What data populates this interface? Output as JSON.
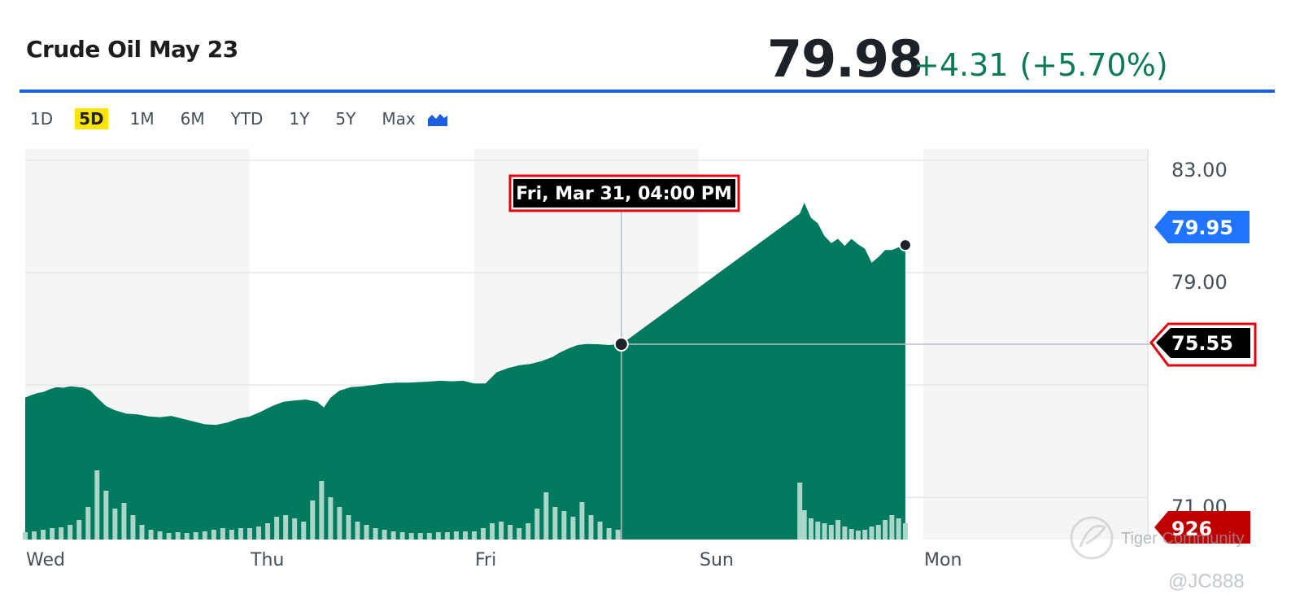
{
  "header": {
    "title": "Crude Oil May 23",
    "price": "79.98",
    "change": "+4.31",
    "change_percent": "(+5.70%)"
  },
  "range_tabs": [
    "1D",
    "5D",
    "1M",
    "6M",
    "YTD",
    "1Y",
    "5Y",
    "Max"
  ],
  "active_range": "5D",
  "chart_type_icon": "mountain-chart-icon",
  "colors": {
    "area": "#007a5e",
    "volume": "#a9d6c8",
    "accent_blue": "#1a5fe0",
    "current_price_badge": "#2074ff",
    "crosshair_badge": "#000000",
    "volume_badge": "#c00000",
    "highlight_box": "#e0000f",
    "change_green": "#0b7a55"
  },
  "tooltip": {
    "datetime": "Fri, Mar 31, 04:00 PM"
  },
  "badges": {
    "current_price": "79.95",
    "crosshair_price": "75.55",
    "volume": "926"
  },
  "watermark": {
    "brand": "Tiger Community",
    "handle": "@JC888"
  },
  "chart_data": {
    "type": "area",
    "title": "Crude Oil May 23",
    "x_labels": [
      "Wed",
      "Thu",
      "Fri",
      "Sun",
      "Mon"
    ],
    "y_ticks": [
      "83.00",
      "79.00",
      "71.00"
    ],
    "ylim": [
      69.5,
      83.4
    ],
    "grid": true,
    "series": [
      {
        "values": [
          [
            0.0,
            74.55
          ],
          [
            0.02,
            74.62
          ],
          [
            0.05,
            74.7
          ],
          [
            0.08,
            74.75
          ],
          [
            0.11,
            74.85
          ],
          [
            0.14,
            74.92
          ],
          [
            0.17,
            74.9
          ],
          [
            0.2,
            74.95
          ],
          [
            0.23,
            74.93
          ],
          [
            0.26,
            74.9
          ],
          [
            0.29,
            74.8
          ],
          [
            0.32,
            74.55
          ],
          [
            0.36,
            74.25
          ],
          [
            0.4,
            74.1
          ],
          [
            0.45,
            73.98
          ],
          [
            0.5,
            73.95
          ],
          [
            0.55,
            73.88
          ],
          [
            0.6,
            73.85
          ],
          [
            0.65,
            73.9
          ],
          [
            0.7,
            73.8
          ],
          [
            0.75,
            73.7
          ],
          [
            0.8,
            73.6
          ],
          [
            0.85,
            73.58
          ],
          [
            0.9,
            73.66
          ],
          [
            0.95,
            73.8
          ],
          [
            1.0,
            73.88
          ],
          [
            1.05,
            74.05
          ],
          [
            1.1,
            74.25
          ],
          [
            1.15,
            74.4
          ],
          [
            1.2,
            74.45
          ],
          [
            1.25,
            74.48
          ],
          [
            1.3,
            74.4
          ],
          [
            1.33,
            74.2
          ],
          [
            1.36,
            74.55
          ],
          [
            1.4,
            74.8
          ],
          [
            1.45,
            74.92
          ],
          [
            1.5,
            74.95
          ],
          [
            1.55,
            75.0
          ],
          [
            1.6,
            75.05
          ],
          [
            1.65,
            75.08
          ],
          [
            1.7,
            75.08
          ],
          [
            1.75,
            75.1
          ],
          [
            1.8,
            75.12
          ],
          [
            1.85,
            75.15
          ],
          [
            1.9,
            75.13
          ],
          [
            1.95,
            75.15
          ],
          [
            2.0,
            75.05
          ],
          [
            2.05,
            75.05
          ],
          [
            2.1,
            75.45
          ],
          [
            2.15,
            75.6
          ],
          [
            2.2,
            75.7
          ],
          [
            2.25,
            75.75
          ],
          [
            2.3,
            75.85
          ],
          [
            2.35,
            76.0
          ],
          [
            2.38,
            76.15
          ],
          [
            2.42,
            76.3
          ],
          [
            2.46,
            76.42
          ],
          [
            2.5,
            76.46
          ],
          [
            2.55,
            76.45
          ],
          [
            2.6,
            76.42
          ],
          [
            2.63,
            76.44
          ],
          [
            2.655,
            76.45
          ],
          [
            3.45,
            81.1
          ],
          [
            3.47,
            81.48
          ],
          [
            3.5,
            80.95
          ],
          [
            3.53,
            80.75
          ],
          [
            3.56,
            80.3
          ],
          [
            3.59,
            80.05
          ],
          [
            3.62,
            80.2
          ],
          [
            3.65,
            79.95
          ],
          [
            3.68,
            80.2
          ],
          [
            3.71,
            80.0
          ],
          [
            3.74,
            79.85
          ],
          [
            3.77,
            79.35
          ],
          [
            3.8,
            79.55
          ],
          [
            3.83,
            79.8
          ],
          [
            3.86,
            79.8
          ],
          [
            3.89,
            79.9
          ],
          [
            3.92,
            79.98
          ]
        ]
      }
    ],
    "volume_series": [
      [
        0.0,
        9
      ],
      [
        0.04,
        10
      ],
      [
        0.08,
        12
      ],
      [
        0.12,
        14
      ],
      [
        0.16,
        15
      ],
      [
        0.2,
        18
      ],
      [
        0.24,
        24
      ],
      [
        0.28,
        40
      ],
      [
        0.32,
        85
      ],
      [
        0.36,
        60
      ],
      [
        0.4,
        38
      ],
      [
        0.44,
        45
      ],
      [
        0.48,
        30
      ],
      [
        0.52,
        18
      ],
      [
        0.56,
        12
      ],
      [
        0.6,
        10
      ],
      [
        0.64,
        8
      ],
      [
        0.68,
        9
      ],
      [
        0.72,
        8
      ],
      [
        0.76,
        9
      ],
      [
        0.8,
        10
      ],
      [
        0.84,
        12
      ],
      [
        0.88,
        14
      ],
      [
        0.92,
        12
      ],
      [
        0.96,
        14
      ],
      [
        1.0,
        14
      ],
      [
        1.04,
        16
      ],
      [
        1.08,
        20
      ],
      [
        1.12,
        28
      ],
      [
        1.16,
        30
      ],
      [
        1.2,
        26
      ],
      [
        1.24,
        22
      ],
      [
        1.28,
        48
      ],
      [
        1.32,
        72
      ],
      [
        1.36,
        52
      ],
      [
        1.4,
        40
      ],
      [
        1.44,
        30
      ],
      [
        1.48,
        22
      ],
      [
        1.52,
        18
      ],
      [
        1.56,
        14
      ],
      [
        1.6,
        12
      ],
      [
        1.64,
        10
      ],
      [
        1.68,
        9
      ],
      [
        1.72,
        8
      ],
      [
        1.76,
        8
      ],
      [
        1.8,
        8
      ],
      [
        1.84,
        9
      ],
      [
        1.88,
        9
      ],
      [
        1.92,
        10
      ],
      [
        1.96,
        10
      ],
      [
        2.0,
        10
      ],
      [
        2.04,
        14
      ],
      [
        2.08,
        20
      ],
      [
        2.12,
        22
      ],
      [
        2.16,
        18
      ],
      [
        2.2,
        14
      ],
      [
        2.24,
        20
      ],
      [
        2.28,
        38
      ],
      [
        2.32,
        58
      ],
      [
        2.36,
        40
      ],
      [
        2.4,
        35
      ],
      [
        2.44,
        28
      ],
      [
        2.48,
        46
      ],
      [
        2.52,
        30
      ],
      [
        2.56,
        22
      ],
      [
        2.6,
        14
      ],
      [
        2.64,
        12
      ],
      [
        3.45,
        70
      ],
      [
        3.47,
        36
      ],
      [
        3.5,
        26
      ],
      [
        3.53,
        22
      ],
      [
        3.56,
        20
      ],
      [
        3.59,
        18
      ],
      [
        3.62,
        24
      ],
      [
        3.65,
        16
      ],
      [
        3.68,
        13
      ],
      [
        3.71,
        11
      ],
      [
        3.74,
        12
      ],
      [
        3.77,
        16
      ],
      [
        3.8,
        18
      ],
      [
        3.83,
        24
      ],
      [
        3.86,
        30
      ],
      [
        3.89,
        26
      ],
      [
        3.92,
        20
      ]
    ]
  }
}
